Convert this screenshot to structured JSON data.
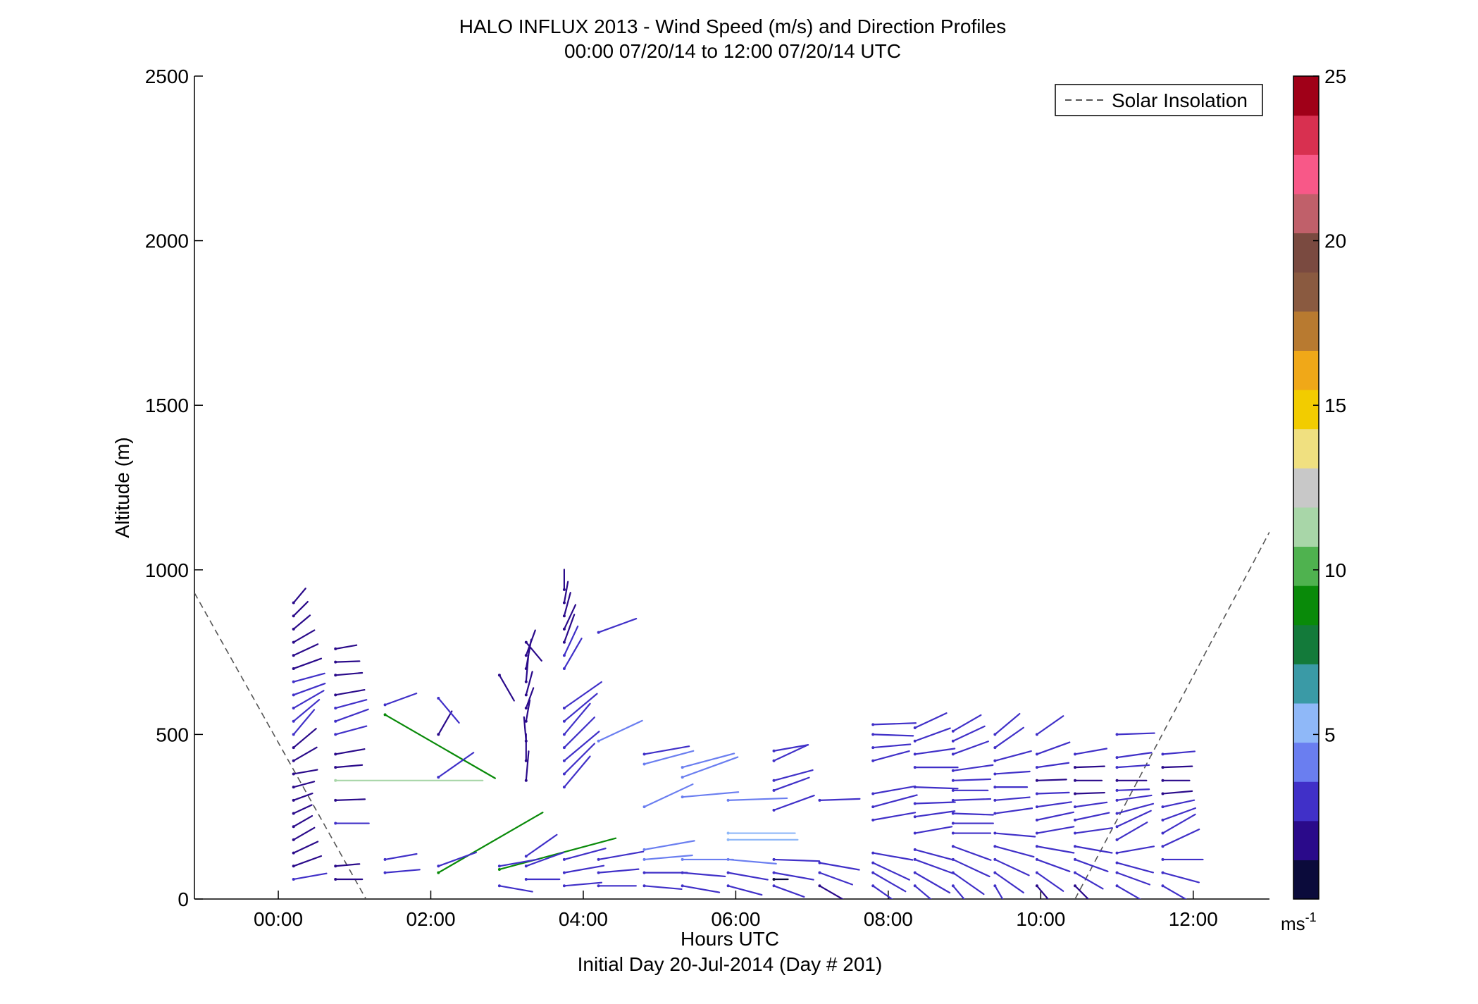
{
  "chart_data": {
    "type": "quiver",
    "title": "HALO INFLUX 2013 - Wind Speed (m/s) and Direction Profiles",
    "subtitle": "00:00 07/20/14 to 12:00 07/20/14  UTC",
    "xlabel": "Hours UTC",
    "xlabel2": "Initial Day 20-Jul-2014 (Day # 201)",
    "ylabel": "Altitude (m)",
    "xlim": [
      -1.1,
      13.0
    ],
    "ylim": [
      0,
      2500
    ],
    "x_ticks": [
      0,
      2,
      4,
      6,
      8,
      10,
      12
    ],
    "x_tick_labels": [
      "00:00",
      "02:00",
      "04:00",
      "06:00",
      "08:00",
      "10:00",
      "12:00"
    ],
    "y_ticks": [
      0,
      500,
      1000,
      1500,
      2000,
      2500
    ],
    "y_tick_labels": [
      "0",
      "500",
      "1000",
      "1500",
      "2000",
      "2500"
    ],
    "colorbar": {
      "range": [
        0,
        25
      ],
      "ticks": [
        5,
        10,
        15,
        20,
        25
      ],
      "tick_labels": [
        "5",
        "10",
        "15",
        "20",
        "25"
      ],
      "unit_label": "ms",
      "unit_exponent": "-1",
      "colors": [
        "#0b0b3b",
        "#2a0a8a",
        "#4030c8",
        "#6a7ef0",
        "#8fb8f8",
        "#3a9aa6",
        "#137a3a",
        "#098a09",
        "#4fb24f",
        "#a8d6a8",
        "#c8c8c8",
        "#f0e080",
        "#f2cc00",
        "#f0a818",
        "#b87a30",
        "#8a5a40",
        "#7a4a40",
        "#c0606a",
        "#f85888",
        "#d83050",
        "#a00018"
      ]
    },
    "legend": {
      "label": "Solar Insolation",
      "position": "top-right",
      "style": "dashed",
      "color": "#555555"
    },
    "solar_insolation": [
      {
        "x": [
          -1.1,
          1.15
        ],
        "y": [
          930,
          0
        ]
      },
      {
        "x": [
          10.45,
          13.0
        ],
        "y": [
          0,
          1115
        ]
      }
    ],
    "wind_vectors": [
      {
        "t": 0.2,
        "alts": [
          60,
          100,
          140,
          180,
          220,
          260,
          300,
          340,
          380,
          420,
          460,
          500,
          540,
          580,
          620,
          660,
          700,
          740,
          780,
          820,
          860,
          900
        ],
        "speeds": [
          2.5,
          2.2,
          2.0,
          1.8,
          1.6,
          1.5,
          1.5,
          1.6,
          1.8,
          2.0,
          2.2,
          2.4,
          2.5,
          2.6,
          2.5,
          2.4,
          2.2,
          2.0,
          1.8,
          1.6,
          1.5,
          1.4
        ],
        "dirs": [
          260,
          250,
          245,
          240,
          240,
          245,
          250,
          255,
          260,
          240,
          230,
          220,
          230,
          240,
          250,
          255,
          250,
          245,
          240,
          230,
          225,
          220
        ]
      },
      {
        "t": 0.75,
        "alts": [
          60,
          100,
          230,
          300,
          360,
          400,
          440,
          500,
          540,
          580,
          620,
          680,
          720,
          760
        ],
        "speeds": [
          2.0,
          1.8,
          2.5,
          2.2,
          11.0,
          2.0,
          2.2,
          2.4,
          2.6,
          2.4,
          2.2,
          2.0,
          1.8,
          1.6
        ],
        "dirs": [
          270,
          265,
          270,
          268,
          270,
          265,
          260,
          255,
          250,
          255,
          260,
          265,
          268,
          260
        ]
      },
      {
        "t": 1.4,
        "alts": [
          80,
          120,
          560,
          590
        ],
        "speeds": [
          2.6,
          2.4,
          9.5,
          2.5
        ],
        "dirs": [
          265,
          260,
          300,
          250
        ]
      },
      {
        "t": 2.1,
        "alts": [
          80,
          100,
          370,
          500,
          610
        ],
        "speeds": [
          9.0,
          3.0,
          3.2,
          2.0,
          2.4
        ],
        "dirs": [
          240,
          250,
          235,
          210,
          320
        ]
      },
      {
        "t": 2.9,
        "alts": [
          40,
          90,
          100,
          680
        ],
        "speeds": [
          2.5,
          9.0,
          3.0,
          2.2
        ],
        "dirs": [
          280,
          255,
          260,
          330
        ]
      },
      {
        "t": 3.25,
        "alts": [
          60,
          100,
          130,
          360,
          420,
          480,
          540,
          580,
          620,
          660,
          700,
          740,
          780
        ],
        "speeds": [
          2.5,
          3.0,
          2.8,
          2.2,
          2.0,
          1.8,
          1.6,
          1.6,
          1.8,
          2.0,
          2.2,
          2.0,
          1.8
        ],
        "dirs": [
          270,
          250,
          235,
          185,
          180,
          175,
          190,
          200,
          195,
          185,
          190,
          200,
          320
        ]
      },
      {
        "t": 3.75,
        "alts": [
          40,
          80,
          120,
          340,
          380,
          420,
          460,
          500,
          540,
          580,
          700,
          740,
          780,
          820,
          860,
          900,
          940
        ],
        "speeds": [
          2.8,
          3.0,
          3.2,
          3.0,
          3.2,
          3.4,
          3.2,
          3.0,
          3.2,
          3.4,
          2.6,
          2.4,
          2.2,
          2.0,
          1.8,
          1.6,
          1.5
        ],
        "dirs": [
          265,
          260,
          255,
          220,
          225,
          230,
          225,
          220,
          230,
          235,
          210,
          205,
          200,
          205,
          195,
          190,
          180
        ]
      },
      {
        "t": 4.2,
        "alts": [
          40,
          80,
          120,
          480,
          810
        ],
        "speeds": [
          2.8,
          3.0,
          3.4,
          3.6,
          3.0
        ],
        "dirs": [
          270,
          265,
          260,
          245,
          250
        ]
      },
      {
        "t": 4.8,
        "alts": [
          40,
          80,
          120,
          150,
          280,
          410,
          440
        ],
        "speeds": [
          2.8,
          3.2,
          3.6,
          3.8,
          4.0,
          3.8,
          3.4
        ],
        "dirs": [
          275,
          270,
          265,
          260,
          245,
          255,
          260
        ]
      },
      {
        "t": 5.3,
        "alts": [
          40,
          80,
          120,
          310,
          370,
          400
        ],
        "speeds": [
          2.8,
          3.2,
          3.8,
          4.2,
          4.4,
          4.0
        ],
        "dirs": [
          280,
          275,
          270,
          265,
          250,
          255
        ]
      },
      {
        "t": 5.9,
        "alts": [
          40,
          80,
          120,
          180,
          200,
          300
        ],
        "speeds": [
          2.6,
          3.0,
          3.6,
          5.2,
          5.0,
          4.4
        ],
        "dirs": [
          285,
          280,
          275,
          270,
          270,
          268
        ]
      },
      {
        "t": 6.5,
        "alts": [
          40,
          60,
          80,
          120,
          270,
          330,
          360,
          420,
          450
        ],
        "speeds": [
          2.4,
          0.8,
          3.0,
          3.4,
          3.2,
          2.8,
          3.0,
          2.8,
          2.6
        ],
        "dirs": [
          290,
          270,
          280,
          272,
          250,
          250,
          255,
          245,
          260
        ]
      },
      {
        "t": 7.1,
        "alts": [
          40,
          80,
          110,
          300
        ],
        "speeds": [
          2.2,
          2.6,
          3.0,
          3.0
        ],
        "dirs": [
          300,
          290,
          280,
          268
        ]
      },
      {
        "t": 7.8,
        "alts": [
          40,
          80,
          110,
          140,
          240,
          280,
          320,
          420,
          460,
          500,
          530
        ],
        "speeds": [
          2.6,
          2.8,
          3.0,
          3.0,
          3.2,
          3.4,
          3.2,
          2.8,
          2.8,
          3.0,
          3.2
        ],
        "dirs": [
          305,
          300,
          295,
          280,
          260,
          255,
          260,
          255,
          265,
          272,
          268
        ]
      },
      {
        "t": 8.35,
        "alts": [
          40,
          80,
          120,
          150,
          200,
          250,
          290,
          340,
          400,
          440,
          480,
          520
        ],
        "speeds": [
          2.8,
          3.0,
          3.2,
          3.0,
          2.8,
          3.0,
          3.0,
          3.2,
          3.2,
          3.0,
          2.8,
          2.6
        ],
        "dirs": [
          310,
          300,
          290,
          285,
          260,
          262,
          268,
          272,
          270,
          262,
          250,
          245
        ]
      },
      {
        "t": 8.85,
        "alts": [
          40,
          80,
          120,
          160,
          200,
          230,
          260,
          300,
          330,
          360,
          390,
          440,
          480,
          510
        ],
        "speeds": [
          2.6,
          2.8,
          3.0,
          3.0,
          2.8,
          3.0,
          3.0,
          2.8,
          2.6,
          2.8,
          3.0,
          2.8,
          2.6,
          2.4
        ],
        "dirs": [
          320,
          305,
          295,
          290,
          270,
          270,
          272,
          268,
          270,
          268,
          262,
          250,
          245,
          240
        ]
      },
      {
        "t": 9.4,
        "alts": [
          40,
          80,
          120,
          160,
          200,
          260,
          300,
          340,
          380,
          420,
          460,
          500
        ],
        "speeds": [
          2.4,
          2.6,
          2.8,
          3.0,
          3.0,
          2.8,
          2.6,
          2.4,
          2.6,
          2.8,
          2.6,
          2.4
        ],
        "dirs": [
          330,
          305,
          295,
          285,
          275,
          262,
          265,
          270,
          266,
          255,
          235,
          230
        ]
      },
      {
        "t": 9.95,
        "alts": [
          40,
          80,
          120,
          160,
          200,
          240,
          280,
          320,
          360,
          400,
          440,
          500
        ],
        "speeds": [
          2.2,
          2.4,
          2.6,
          2.8,
          2.8,
          2.8,
          2.6,
          2.4,
          2.2,
          2.4,
          2.6,
          2.4
        ],
        "dirs": [
          320,
          305,
          290,
          280,
          260,
          258,
          262,
          268,
          268,
          262,
          250,
          235
        ]
      },
      {
        "t": 10.45,
        "alts": [
          40,
          80,
          120,
          160,
          200,
          240,
          280,
          320,
          360,
          400,
          440
        ],
        "speeds": [
          2.2,
          2.4,
          2.6,
          2.8,
          2.8,
          2.6,
          2.4,
          2.2,
          2.0,
          2.2,
          2.4
        ],
        "dirs": [
          315,
          300,
          290,
          280,
          262,
          258,
          262,
          268,
          270,
          268,
          260
        ]
      },
      {
        "t": 11.0,
        "alts": [
          40,
          80,
          110,
          140,
          180,
          220,
          260,
          300,
          330,
          360,
          400,
          430,
          500
        ],
        "speeds": [
          2.4,
          2.6,
          2.8,
          2.8,
          2.6,
          2.8,
          2.8,
          2.6,
          2.4,
          2.2,
          2.4,
          2.6,
          2.8
        ],
        "dirs": [
          300,
          290,
          285,
          260,
          240,
          245,
          255,
          262,
          268,
          270,
          266,
          262,
          268
        ]
      },
      {
        "t": 11.6,
        "alts": [
          40,
          80,
          120,
          160,
          200,
          240,
          280,
          320,
          360,
          400,
          440
        ],
        "speeds": [
          2.6,
          2.8,
          3.0,
          3.0,
          2.8,
          2.6,
          2.4,
          2.2,
          2.0,
          2.2,
          2.4
        ],
        "dirs": [
          300,
          285,
          270,
          245,
          240,
          250,
          258,
          265,
          270,
          268,
          265
        ]
      }
    ]
  }
}
